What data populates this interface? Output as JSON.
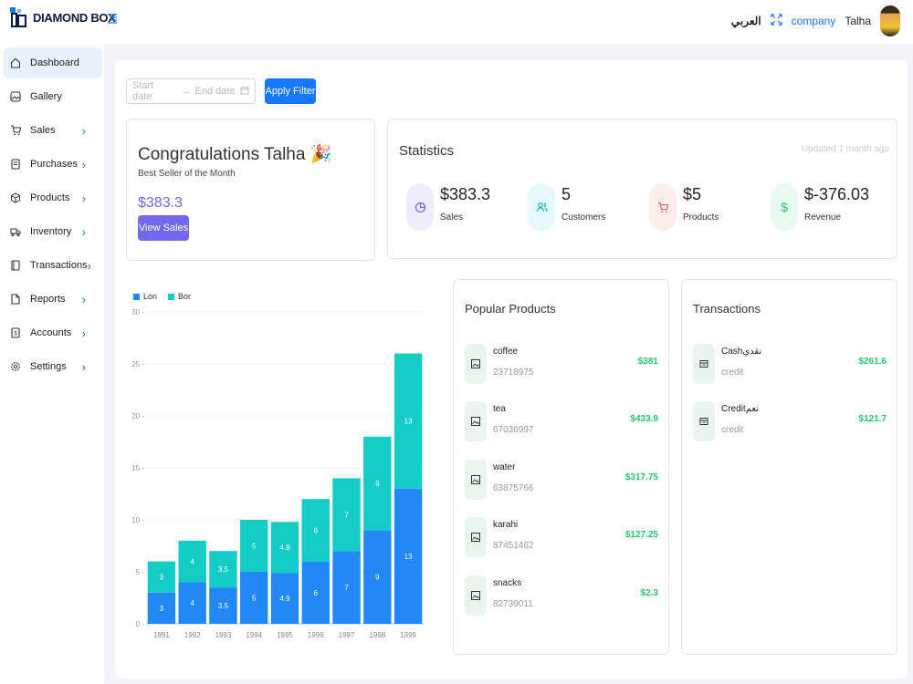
{
  "header": {
    "brand": "DIAMOND BOX",
    "language": "العربي",
    "company": "company",
    "user": "Talha"
  },
  "sidebar": {
    "items": [
      {
        "label": "Dashboard",
        "icon": "home-icon",
        "active": true,
        "expandable": false
      },
      {
        "label": "Gallery",
        "icon": "image-icon",
        "active": false,
        "expandable": false
      },
      {
        "label": "Sales",
        "icon": "cart-icon",
        "active": false,
        "expandable": true
      },
      {
        "label": "Purchases",
        "icon": "receipt-icon",
        "active": false,
        "expandable": true
      },
      {
        "label": "Products",
        "icon": "box-icon",
        "active": false,
        "expandable": true
      },
      {
        "label": "Inventory",
        "icon": "truck-icon",
        "active": false,
        "expandable": true
      },
      {
        "label": "Transactions",
        "icon": "book-icon",
        "active": false,
        "expandable": true
      },
      {
        "label": "Reports",
        "icon": "file-icon",
        "active": false,
        "expandable": true
      },
      {
        "label": "Accounts",
        "icon": "dollar-file-icon",
        "active": false,
        "expandable": true
      },
      {
        "label": "Settings",
        "icon": "gear-icon",
        "active": false,
        "expandable": true
      }
    ]
  },
  "filter": {
    "start_placeholder": "Start date",
    "end_placeholder": "End date",
    "apply_label": "Apply Filter"
  },
  "congrats": {
    "title": "Congratulations Talha 🎉",
    "subtitle": "Best Seller of the Month",
    "amount": "$383.3",
    "button": "View Sales"
  },
  "statistics": {
    "title": "Statistics",
    "updated": "Updated 1 month ago",
    "items": [
      {
        "value": "$383.3",
        "label": "Sales",
        "icon": "pie-chart-icon",
        "color": "#7367f0",
        "bg": "#eeedfd"
      },
      {
        "value": "5",
        "label": "Customers",
        "icon": "users-icon",
        "color": "#00cfe8",
        "bg": "#e5f9fc"
      },
      {
        "value": "$5",
        "label": "Products",
        "icon": "cart-icon",
        "color": "#ea5455",
        "bg": "#fdeeee"
      },
      {
        "value": "$-376.03",
        "label": "Revenue",
        "icon": "dollar-icon",
        "color": "#28c76f",
        "bg": "#e8f9ef"
      }
    ]
  },
  "chart_data": {
    "type": "bar",
    "stacked": true,
    "categories": [
      "1991",
      "1992",
      "1993",
      "1994",
      "1995",
      "1996",
      "1997",
      "1998",
      "1999"
    ],
    "series": [
      {
        "name": "Lon",
        "color": "#2188f5",
        "values": [
          3,
          4,
          3.5,
          5,
          4.9,
          6,
          7,
          9,
          13
        ]
      },
      {
        "name": "Bor",
        "color": "#13ccc6",
        "values": [
          3,
          4,
          3.5,
          5,
          4.9,
          6,
          7,
          9,
          13
        ]
      }
    ],
    "yticks": [
      "0",
      "5",
      "10",
      "15",
      "20",
      "25",
      "30"
    ],
    "ylim": [
      0,
      30
    ],
    "legend_position": "top-left",
    "grid": true
  },
  "popular_products": {
    "title": "Popular Products",
    "items": [
      {
        "name": "coffee",
        "code": "23718975",
        "amount": "$381"
      },
      {
        "name": "tea",
        "code": "67036997",
        "amount": "$433.9"
      },
      {
        "name": "water",
        "code": "63875766",
        "amount": "$317.75"
      },
      {
        "name": "karahi",
        "code": "87451462",
        "amount": "$127.25"
      },
      {
        "name": "snacks",
        "code": "82739011",
        "amount": "$2.3"
      }
    ]
  },
  "transactions": {
    "title": "Transactions",
    "items": [
      {
        "name": "Cashنقدي",
        "type": "credit",
        "amount": "$261.6"
      },
      {
        "name": "Creditنعم",
        "type": "credit",
        "amount": "$121.7"
      }
    ]
  }
}
